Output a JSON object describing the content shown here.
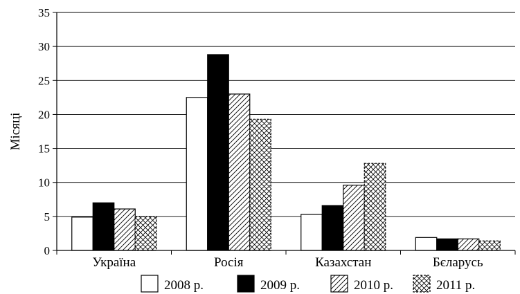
{
  "chart_data": {
    "type": "bar",
    "title": "",
    "xlabel": "",
    "ylabel": "Місяці",
    "ylim": [
      0,
      35
    ],
    "yticks": [
      0,
      5,
      10,
      15,
      20,
      25,
      30,
      35
    ],
    "grid": "horizontal",
    "legend_position": "bottom",
    "categories": [
      "Україна",
      "Росія",
      "Казахстан",
      "Бєларусь"
    ],
    "series": [
      {
        "name": "2008 р.",
        "values": [
          4.9,
          22.5,
          5.3,
          1.9
        ],
        "fill": "white"
      },
      {
        "name": "2009 р.",
        "values": [
          7.0,
          28.8,
          6.6,
          1.7
        ],
        "fill": "black"
      },
      {
        "name": "2010 р.",
        "values": [
          6.1,
          23.0,
          9.6,
          1.7
        ],
        "fill": "diagonal-hatch"
      },
      {
        "name": "2011 р.",
        "values": [
          5.0,
          19.3,
          12.8,
          1.4
        ],
        "fill": "cross-hatch"
      }
    ]
  }
}
